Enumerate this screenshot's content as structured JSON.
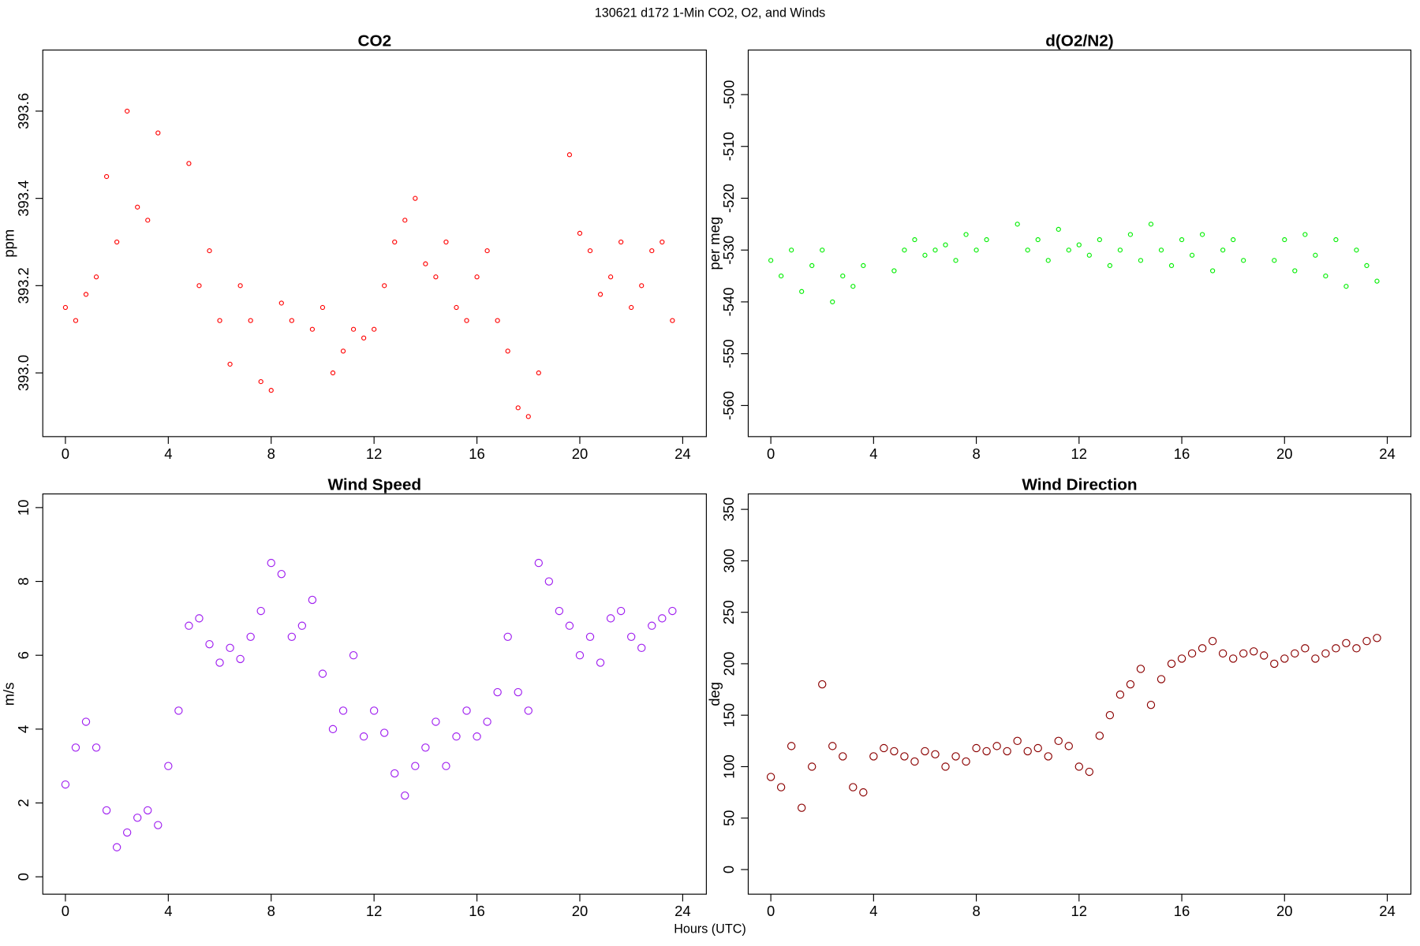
{
  "title": "130621   d172   1-Min CO2, O2, and Winds",
  "xlabel": "Hours (UTC)",
  "chart_data": [
    {
      "type": "scatter",
      "title": "CO2",
      "ylabel": "ppm",
      "color": "#ff0000",
      "x": [
        0,
        0.4,
        0.8,
        1.2,
        1.6,
        2.0,
        2.4,
        2.8,
        3.2,
        3.6,
        4.0,
        4.4,
        4.8,
        5.2,
        5.6,
        6.0,
        6.4,
        6.8,
        7.2,
        7.6,
        8.0,
        8.4,
        8.8,
        9.2,
        9.6,
        10.0,
        10.4,
        10.8,
        11.2,
        11.6,
        12.0,
        12.4,
        12.8,
        13.2,
        13.6,
        14.0,
        14.4,
        14.8,
        15.2,
        15.6,
        16.0,
        16.4,
        16.8,
        17.2,
        17.6,
        18.0,
        18.4,
        18.8,
        19.2,
        19.6,
        20.0,
        20.4,
        20.8,
        21.2,
        21.6,
        22.0,
        22.4,
        22.8,
        23.2,
        23.6
      ],
      "values": [
        393.15,
        393.12,
        393.18,
        393.22,
        393.45,
        393.3,
        393.6,
        393.38,
        393.35,
        393.55,
        null,
        null,
        393.48,
        393.2,
        393.28,
        393.12,
        393.02,
        393.2,
        393.12,
        392.98,
        392.96,
        393.16,
        393.12,
        null,
        393.1,
        393.15,
        393.0,
        393.05,
        393.1,
        393.08,
        393.1,
        393.2,
        393.3,
        393.35,
        393.4,
        393.25,
        393.22,
        393.3,
        393.15,
        393.12,
        393.22,
        393.28,
        393.12,
        393.05,
        392.92,
        392.9,
        393.0,
        null,
        null,
        393.5,
        393.32,
        393.28,
        393.18,
        393.22,
        393.3,
        393.15,
        393.2,
        393.28,
        393.3,
        393.12
      ],
      "xlim": [
        -0.88,
        24.92
      ],
      "ylim": [
        392.854,
        393.74
      ],
      "xticks": [
        0,
        4,
        8,
        12,
        16,
        20,
        24
      ],
      "yticks": [
        {
          "value": 393,
          "label": "393.0"
        },
        393.2,
        393.4,
        393.6
      ]
    },
    {
      "type": "scatter",
      "title": "d(O2/N2)",
      "ylabel": "per meg",
      "color": "#00ee00",
      "x": [
        0,
        0.4,
        0.8,
        1.2,
        1.6,
        2.0,
        2.4,
        2.8,
        3.2,
        3.6,
        4.0,
        4.4,
        4.8,
        5.2,
        5.6,
        6.0,
        6.4,
        6.8,
        7.2,
        7.6,
        8.0,
        8.4,
        8.8,
        9.2,
        9.6,
        10.0,
        10.4,
        10.8,
        11.2,
        11.6,
        12.0,
        12.4,
        12.8,
        13.2,
        13.6,
        14.0,
        14.4,
        14.8,
        15.2,
        15.6,
        16.0,
        16.4,
        16.8,
        17.2,
        17.6,
        18.0,
        18.4,
        18.8,
        19.2,
        19.6,
        20.0,
        20.4,
        20.8,
        21.2,
        21.6,
        22.0,
        22.4,
        22.8,
        23.2,
        23.6
      ],
      "values": [
        -532,
        -535,
        -530,
        -538,
        -533,
        -530,
        -540,
        -535,
        -537,
        -533,
        null,
        null,
        -534,
        -530,
        -528,
        -531,
        -530,
        -529,
        -532,
        -527,
        -530,
        -528,
        null,
        null,
        -525,
        -530,
        -528,
        -532,
        -526,
        -530,
        -529,
        -531,
        -528,
        -533,
        -530,
        -527,
        -532,
        -525,
        -530,
        -533,
        -528,
        -531,
        -527,
        -534,
        -530,
        -528,
        -532,
        null,
        null,
        -532,
        -528,
        -534,
        -527,
        -531,
        -535,
        -528,
        -537,
        -530,
        -533,
        -536
      ],
      "xlim": [
        -0.88,
        24.92
      ],
      "ylim": [
        -566,
        -491.4
      ],
      "xticks": [
        0,
        4,
        8,
        12,
        16,
        20,
        24
      ],
      "yticks": [
        -560,
        -550,
        -540,
        -530,
        -520,
        -510,
        -500
      ]
    },
    {
      "type": "scatter",
      "title": "Wind Speed",
      "ylabel": "m/s",
      "color": "#a020f0",
      "x": [
        0,
        0.4,
        0.8,
        1.2,
        1.6,
        2.0,
        2.4,
        2.8,
        3.2,
        3.6,
        4.0,
        4.4,
        4.8,
        5.2,
        5.6,
        6.0,
        6.4,
        6.8,
        7.2,
        7.6,
        8.0,
        8.4,
        8.8,
        9.2,
        9.6,
        10.0,
        10.4,
        10.8,
        11.2,
        11.6,
        12.0,
        12.4,
        12.8,
        13.2,
        13.6,
        14.0,
        14.4,
        14.8,
        15.2,
        15.6,
        16.0,
        16.4,
        16.8,
        17.2,
        17.6,
        18.0,
        18.4,
        18.8,
        19.2,
        19.6,
        20.0,
        20.4,
        20.8,
        21.2,
        21.6,
        22.0,
        22.4,
        22.8,
        23.2,
        23.6
      ],
      "values": [
        2.5,
        3.5,
        4.2,
        3.5,
        1.8,
        0.8,
        1.2,
        1.6,
        1.8,
        1.4,
        3.0,
        4.5,
        6.8,
        7.0,
        6.3,
        5.8,
        6.2,
        5.9,
        6.5,
        7.2,
        8.5,
        8.2,
        6.5,
        6.8,
        7.5,
        5.5,
        4.0,
        4.5,
        6.0,
        3.8,
        4.5,
        3.9,
        2.8,
        2.2,
        3.0,
        3.5,
        4.2,
        3.0,
        3.8,
        4.5,
        3.8,
        4.2,
        5.0,
        6.5,
        5.0,
        4.5,
        8.5,
        8.0,
        7.2,
        6.8,
        6.0,
        6.5,
        5.8,
        7.0,
        7.2,
        6.5,
        6.2,
        6.8,
        7.0,
        7.2
      ],
      "xlim": [
        -0.88,
        24.92
      ],
      "ylim": [
        -0.47,
        10.37
      ],
      "xticks": [
        0,
        4,
        8,
        12,
        16,
        20,
        24
      ],
      "yticks": [
        0,
        2,
        4,
        6,
        8,
        10
      ]
    },
    {
      "type": "scatter",
      "title": "Wind Direction",
      "ylabel": "deg",
      "color": "#8b0000",
      "x": [
        0,
        0.4,
        0.8,
        1.2,
        1.6,
        2.0,
        2.4,
        2.8,
        3.2,
        3.6,
        4.0,
        4.4,
        4.8,
        5.2,
        5.6,
        6.0,
        6.4,
        6.8,
        7.2,
        7.6,
        8.0,
        8.4,
        8.8,
        9.2,
        9.6,
        10.0,
        10.4,
        10.8,
        11.2,
        11.6,
        12.0,
        12.4,
        12.8,
        13.2,
        13.6,
        14.0,
        14.4,
        14.8,
        15.2,
        15.6,
        16.0,
        16.4,
        16.8,
        17.2,
        17.6,
        18.0,
        18.4,
        18.8,
        19.2,
        19.6,
        20.0,
        20.4,
        20.8,
        21.2,
        21.6,
        22.0,
        22.4,
        22.8,
        23.2,
        23.6
      ],
      "values": [
        90,
        80,
        120,
        60,
        100,
        180,
        120,
        110,
        80,
        75,
        110,
        118,
        115,
        110,
        105,
        115,
        112,
        100,
        110,
        105,
        118,
        115,
        120,
        115,
        125,
        115,
        118,
        110,
        125,
        120,
        100,
        95,
        130,
        150,
        170,
        180,
        195,
        160,
        185,
        200,
        205,
        210,
        215,
        222,
        210,
        205,
        210,
        212,
        208,
        200,
        205,
        210,
        215,
        205,
        210,
        215,
        220,
        215,
        222,
        225
      ],
      "xlim": [
        -0.88,
        24.92
      ],
      "ylim": [
        -23.9,
        365
      ],
      "xticks": [
        0,
        4,
        8,
        12,
        16,
        20,
        24
      ],
      "yticks": [
        0,
        50,
        100,
        150,
        200,
        250,
        300,
        350
      ]
    }
  ]
}
